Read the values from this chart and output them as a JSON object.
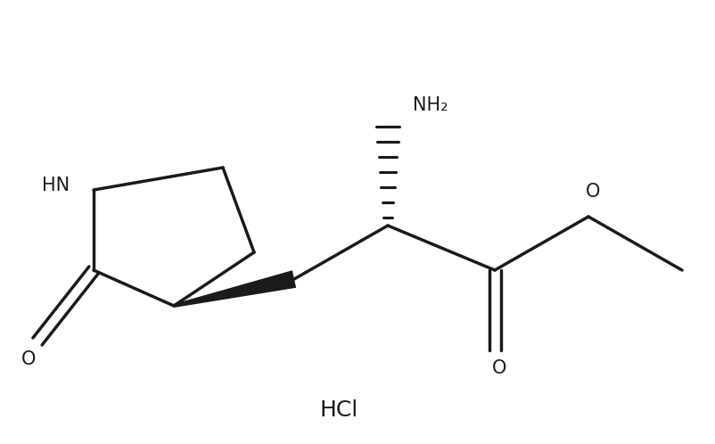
{
  "background_color": "#ffffff",
  "line_color": "#1a1a1a",
  "font_color": "#1a1a1a",
  "line_width": 2.5,
  "font_size_atoms": 15,
  "font_size_hcl": 18,
  "figsize": [
    8.02,
    4.98
  ],
  "dpi": 100,
  "hcl_text": "HCl",
  "NH2_label": "NH₂",
  "HN_label": "HN",
  "O_label1": "O",
  "O_label2": "O",
  "O_label3": "O"
}
